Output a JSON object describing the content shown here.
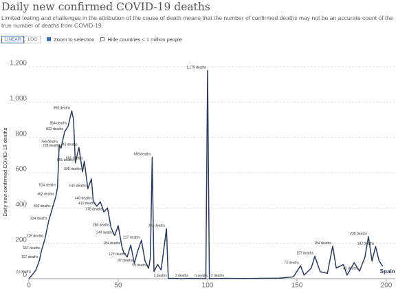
{
  "chart_data": {
    "type": "line",
    "title": "Daily new confirmed COVID-19 deaths",
    "subtitle": "Limited testing and challenges in the attribution of the cause of death means that the number of confirmed deaths may not be an accurate count of the true number of deaths from COVID-19.",
    "scale_buttons": [
      "LINEAR",
      "LOG"
    ],
    "active_scale": 0,
    "options": [
      {
        "label": "Zoom to selection",
        "checked": true
      },
      {
        "label": "Hide countries < 1 million people",
        "checked": false
      }
    ],
    "y_label": "Daily new confirmed COVID-19 deaths",
    "xlim": [
      0,
      205
    ],
    "ylim": [
      0,
      1230
    ],
    "xticks": [
      0,
      50,
      100,
      150,
      200
    ],
    "yticks": [
      0,
      200,
      400,
      600,
      800,
      {
        "value": 1000,
        "label": "1,000"
      },
      {
        "value": 1200,
        "label": "1,200"
      }
    ],
    "grid": true,
    "x": [
      0,
      2,
      4,
      6,
      7,
      9,
      11,
      13,
      15,
      16,
      17,
      18,
      20,
      22,
      24,
      25,
      26,
      28,
      30,
      31,
      33,
      35,
      36,
      38,
      40,
      42,
      44,
      46,
      48,
      50,
      52,
      53,
      55,
      57,
      59,
      61,
      63,
      65,
      67,
      68,
      69,
      70,
      72,
      74,
      77,
      78,
      82,
      85,
      90,
      99,
      100,
      101,
      110,
      120,
      130,
      140,
      148,
      152,
      154,
      158,
      160,
      163,
      167,
      170,
      172,
      176,
      178,
      182,
      185,
      188,
      190,
      192,
      194,
      196,
      198
    ],
    "series": [
      {
        "name": "Spain",
        "color": "#2e3a59",
        "values": [
          0,
          23,
          50,
          107,
          157,
          225,
          324,
          394,
          462,
          514,
          759,
          738,
          832,
          864,
          950,
          900,
          655,
          743,
          605,
          665,
          510,
          565,
          440,
          410,
          435,
          378,
          400,
          288,
          244,
          300,
          184,
          150,
          123,
          190,
          87,
          160,
          217,
          100,
          59,
          120,
          688,
          40,
          80,
          50,
          283,
          2,
          2,
          0,
          2,
          0,
          1179,
          0,
          2,
          1,
          2,
          3,
          10,
          73,
          20,
          60,
          127,
          40,
          30,
          184,
          60,
          80,
          20,
          90,
          43,
          120,
          238,
          100,
          182,
          100,
          70
        ],
        "value_labels": [
          null,
          "23 deaths",
          null,
          "107 deaths",
          "157 deaths",
          "225 deaths",
          "324 deaths",
          "394 deaths",
          "462 deaths",
          "514 deaths",
          "759 deaths",
          "738 deaths",
          "832 deaths",
          "864 deaths",
          "950 deaths",
          null,
          "655 deaths",
          "743 deaths",
          "605 deaths",
          "665 deaths",
          "510 deaths",
          null,
          "440 deaths",
          "410 deaths",
          null,
          "378 deaths",
          null,
          "288 deaths",
          "244 deaths",
          null,
          "184 deaths",
          null,
          "123 deaths",
          null,
          "87 deaths",
          null,
          "217 deaths",
          null,
          "59 deaths",
          null,
          "688 deaths",
          null,
          null,
          null,
          "283 deaths",
          "2 deaths",
          null,
          null,
          "2 deaths",
          null,
          "1,179 deaths",
          "0 deaths",
          "2 deaths",
          null,
          null,
          null,
          null,
          "73 deaths",
          null,
          null,
          "127 deaths",
          null,
          null,
          "184 deaths",
          null,
          null,
          null,
          null,
          "43 deaths",
          null,
          "238 deaths",
          null,
          "182 deaths",
          null,
          null
        ]
      }
    ]
  }
}
